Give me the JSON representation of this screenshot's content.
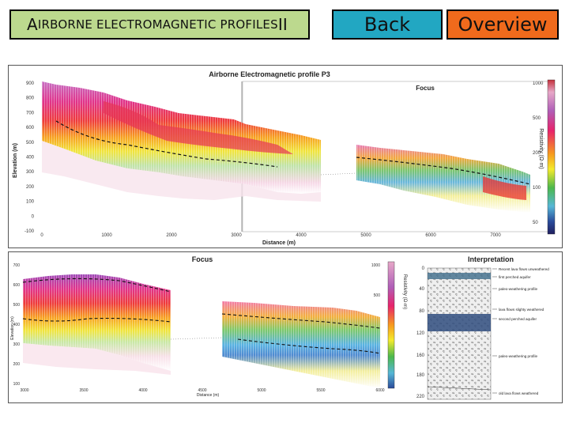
{
  "header": {
    "title_prefix": "A",
    "title_rest": "IRBORNE ELECTROMAGNETIC PROFILES",
    "title_suffix": " II",
    "back_label": "Back",
    "overview_label": "Overview"
  },
  "top_chart": {
    "title": "Airborne Electromagnetic profile P3",
    "focus_label": "Focus",
    "xlabel": "Distance (m)",
    "ylabel": "Elevation (m)",
    "colorbar_label": "Resistivity (Ω·m)",
    "x_ticks": [
      "0",
      "1000",
      "2000",
      "3000",
      "4000",
      "5000",
      "6000",
      "7000"
    ],
    "y_ticks": [
      "900",
      "800",
      "700",
      "600",
      "500",
      "400",
      "300",
      "200",
      "100",
      "0",
      "-100"
    ],
    "colorbar_ticks": [
      "1000",
      "500",
      "200",
      "100",
      "50"
    ]
  },
  "focus_chart": {
    "title": "Focus",
    "xlabel": "Distance (m)",
    "ylabel": "Elevation (m)",
    "colorbar_label": "Resistivity (Ω·m)",
    "x_ticks": [
      "3000",
      "3500",
      "4000",
      "4500",
      "5000",
      "5500",
      "6000"
    ],
    "y_ticks": [
      "700",
      "600",
      "500",
      "400",
      "300",
      "200",
      "100"
    ],
    "colorbar_ticks": [
      "1000",
      "500",
      "200",
      "100",
      "50"
    ]
  },
  "interpretation": {
    "title": "Interpretation",
    "depth_ticks": [
      "0",
      "40",
      "80",
      "120",
      "160",
      "180",
      "220"
    ],
    "labels": [
      "Recent lava flows unweathered",
      "first perched aquifer",
      "paleo-weathering profile",
      "lava flows slighty weathered",
      "second perched aquifer",
      "paleo-weathering profile",
      "old lava flows weathered"
    ]
  },
  "colors": {
    "title_bg": "#bcd98e",
    "back_bg": "#22a7c2",
    "overview_bg": "#f06a1c"
  }
}
